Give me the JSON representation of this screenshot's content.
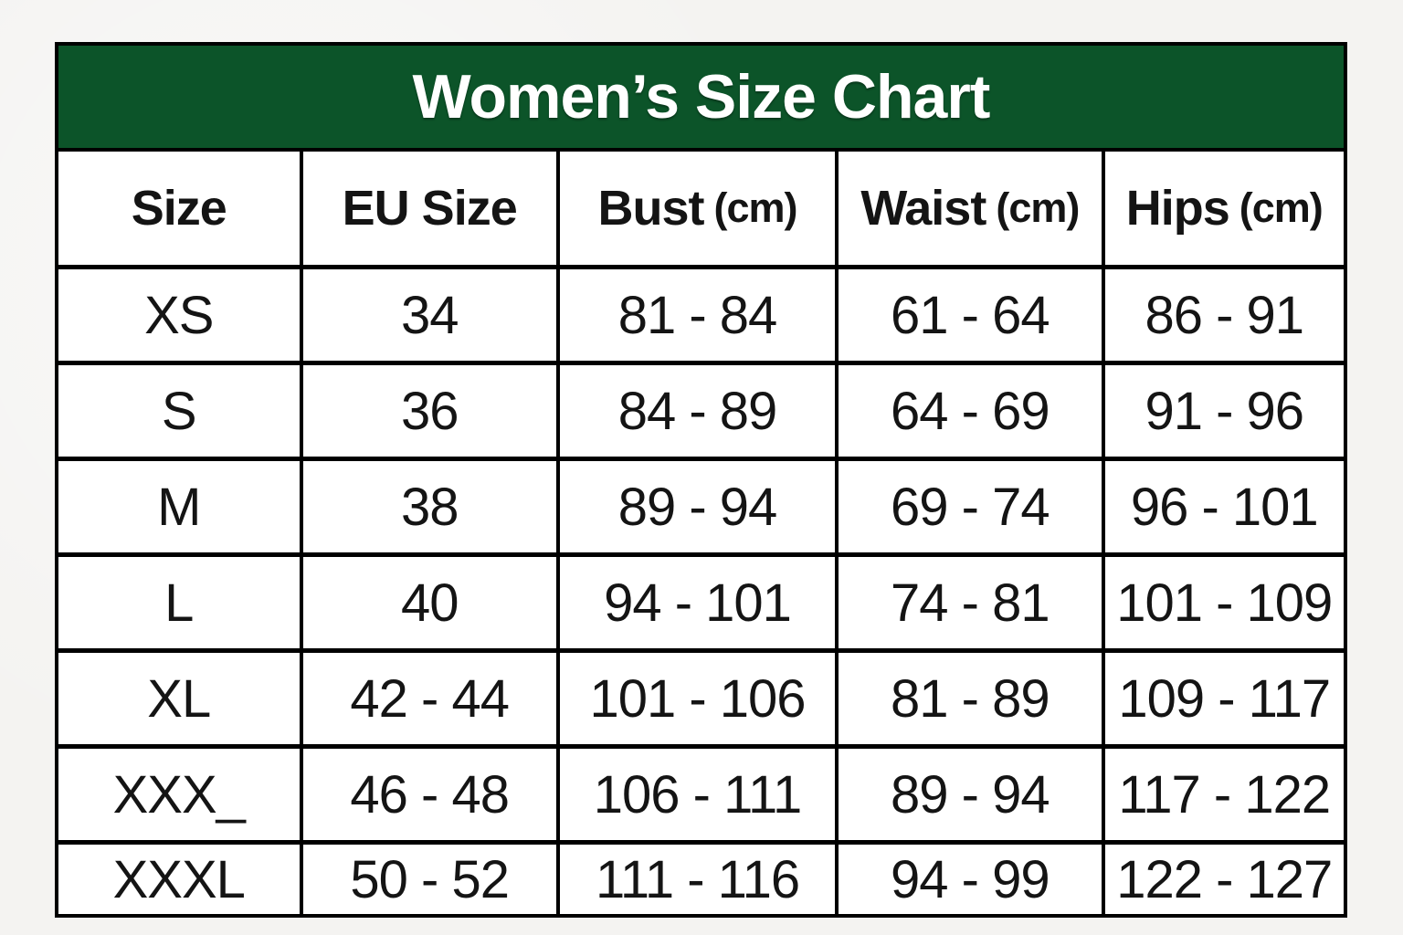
{
  "title": "Women’s Size Chart",
  "colors": {
    "title_band_bg": "#0c5429",
    "title_text": "#ffffff",
    "border": "#000000",
    "cell_bg": "#ffffff",
    "page_bg": "#f4f3f1",
    "cell_text": "#141414"
  },
  "header": {
    "columns": [
      {
        "label": "Size",
        "unit": ""
      },
      {
        "label": "EU Size",
        "unit": ""
      },
      {
        "label": "Bust",
        "unit": "(cm)"
      },
      {
        "label": "Waist",
        "unit": "(cm)"
      },
      {
        "label": "Hips",
        "unit": "(cm)"
      }
    ]
  },
  "chart_data": {
    "type": "table",
    "title": "Women’s Size Chart",
    "columns": [
      "Size",
      "EU Size",
      "Bust (cm)",
      "Waist (cm)",
      "Hips (cm)"
    ],
    "rows": [
      [
        "XS",
        "34",
        "81 - 84",
        "61 - 64",
        "86 - 91"
      ],
      [
        "S",
        "36",
        "84 - 89",
        "64 - 69",
        "91 - 96"
      ],
      [
        "M",
        "38",
        "89 - 94",
        "69 - 74",
        "96 - 101"
      ],
      [
        "L",
        "40",
        "94 - 101",
        "74 - 81",
        "101 - 109"
      ],
      [
        "XL",
        "42 - 44",
        "101 - 106",
        "81 - 89",
        "109 - 117"
      ],
      [
        "XXX_",
        "46 - 48",
        "106 - 111",
        "89 - 94",
        "117 - 122"
      ],
      [
        "XXXL",
        "50 - 52",
        "111 - 116",
        "94 - 99",
        "122 - 127"
      ]
    ]
  }
}
